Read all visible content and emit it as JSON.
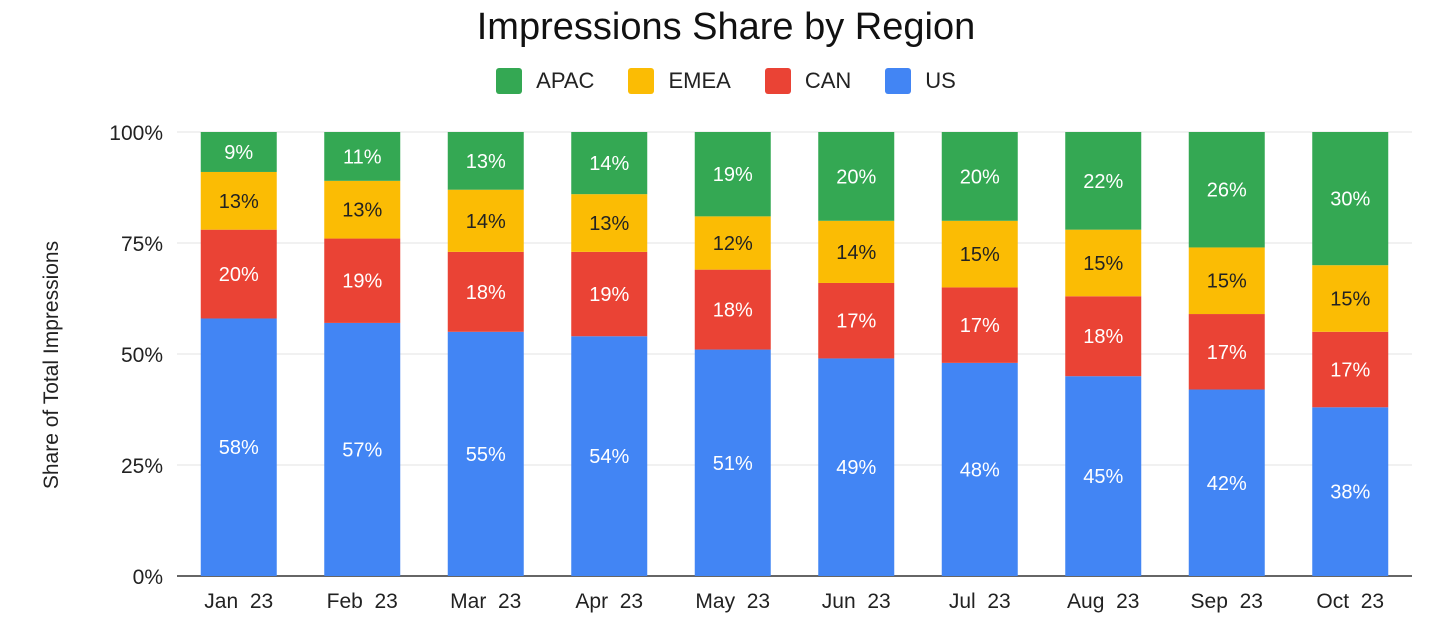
{
  "chart_data": {
    "type": "bar",
    "stacked": true,
    "title": "Impressions Share by Region",
    "xlabel": "",
    "ylabel": "Share of Total Impressions",
    "ylim": [
      0,
      100
    ],
    "yticks": [
      "0%",
      "25%",
      "50%",
      "75%",
      "100%"
    ],
    "grid": true,
    "legend_position": "top",
    "categories": [
      "Jan  23",
      "Feb  23",
      "Mar  23",
      "Apr  23",
      "May  23",
      "Jun  23",
      "Jul  23",
      "Aug  23",
      "Sep  23",
      "Oct  23"
    ],
    "series": [
      {
        "name": "US",
        "color": "#4285F4",
        "values": [
          58,
          57,
          55,
          54,
          51,
          49,
          48,
          45,
          42,
          38
        ]
      },
      {
        "name": "CAN",
        "color": "#EA4335",
        "values": [
          20,
          19,
          18,
          19,
          18,
          17,
          17,
          18,
          17,
          17
        ]
      },
      {
        "name": "EMEA",
        "color": "#FBBC04",
        "values": [
          13,
          13,
          14,
          13,
          12,
          14,
          15,
          15,
          15,
          15
        ]
      },
      {
        "name": "APAC",
        "color": "#34A853",
        "values": [
          9,
          11,
          13,
          14,
          19,
          20,
          20,
          22,
          26,
          30
        ]
      }
    ],
    "legend_order": [
      "APAC",
      "EMEA",
      "CAN",
      "US"
    ],
    "data_label_suffix": "%"
  }
}
